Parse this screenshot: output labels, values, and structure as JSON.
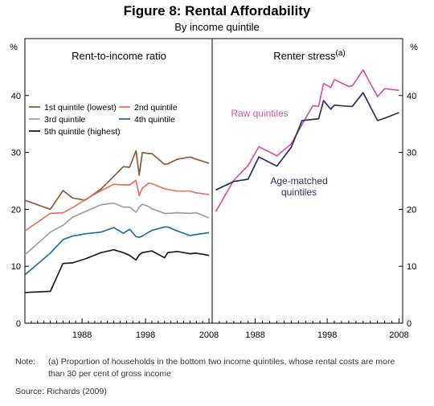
{
  "figure": {
    "title": "Figure 8: Rental Affordability",
    "subtitle": "By income quintile",
    "note_label": "Note:",
    "note_text": "(a) Proportion of households in the bottom two income quintiles, whose rental costs are more than 30 per cent of gross income",
    "source_label": "Source:",
    "source_text": "Richards (2009)"
  },
  "chart_data": [
    {
      "type": "line",
      "title": "Rent-to-income ratio",
      "title_superscript": "",
      "ylabel_left": "%",
      "ylabel_right": "",
      "ylim": [
        0,
        50
      ],
      "yticks": [
        0,
        10,
        20,
        30,
        40
      ],
      "xlim": [
        1979,
        2008.5
      ],
      "xticks": [
        1988,
        1998,
        2008
      ],
      "grid": false,
      "legend_position": "upper-left",
      "series": [
        {
          "name": "1st quintile (lowest)",
          "color": "#8b5a3c",
          "x": [
            1979,
            1983,
            1985,
            1986.5,
            1988.5,
            1991,
            1993,
            1994.5,
            1995.5,
            1996.5,
            1997,
            1997.5,
            1998.5,
            1999,
            2001,
            2001.5,
            2003,
            2005,
            2006,
            2008
          ],
          "y": [
            21.6,
            20,
            23.3,
            22,
            21.6,
            23.6,
            25.8,
            27.5,
            27.4,
            30.3,
            26,
            30,
            29.8,
            29.8,
            27.9,
            28,
            28.8,
            29.2,
            28.8,
            28.1
          ]
        },
        {
          "name": "2nd quintile",
          "color": "#e8715e",
          "x": [
            1979,
            1983,
            1985,
            1986.5,
            1988.5,
            1991,
            1993,
            1994.5,
            1995.5,
            1996.5,
            1997,
            1997.5,
            1998.5,
            1999,
            2001,
            2001.5,
            2003,
            2005,
            2006,
            2008
          ],
          "y": [
            16.2,
            19.3,
            19.4,
            20.3,
            21.7,
            23.3,
            24.4,
            24.3,
            24.3,
            25.1,
            22.4,
            23.7,
            24.6,
            24.5,
            23.6,
            23.5,
            23.2,
            23.2,
            22.9,
            22.6
          ]
        },
        {
          "name": "3rd quintile",
          "color": "#a0a0a0",
          "x": [
            1979,
            1983,
            1985,
            1986.5,
            1988.5,
            1991,
            1993,
            1994.5,
            1995.5,
            1996.5,
            1997,
            1997.5,
            1998.5,
            1999,
            2001,
            2001.5,
            2003,
            2005,
            2006,
            2008
          ],
          "y": [
            12,
            16,
            17.2,
            18.6,
            19.6,
            20.8,
            21.1,
            20.4,
            20.4,
            19.5,
            20.4,
            20.9,
            20.5,
            20.1,
            19.3,
            19.3,
            19.4,
            19.3,
            19.4,
            18.5
          ]
        },
        {
          "name": "4th quintile",
          "color": "#1f6fa6",
          "x": [
            1979,
            1983,
            1985,
            1986.5,
            1988.5,
            1991,
            1993,
            1994.5,
            1995.5,
            1996.5,
            1997,
            1997.5,
            1998.5,
            1999,
            2001,
            2001.5,
            2003,
            2005,
            2006,
            2008
          ],
          "y": [
            8.5,
            12.3,
            14.7,
            15.3,
            15.7,
            16,
            16.8,
            15.8,
            16.5,
            15.2,
            15.1,
            15.3,
            16,
            16.3,
            16.9,
            16.9,
            16.2,
            15.4,
            15.6,
            15.9
          ]
        },
        {
          "name": "5th quintile (highest)",
          "color": "#1a1a1a",
          "x": [
            1979,
            1983,
            1985,
            1986.5,
            1988.5,
            1991,
            1993,
            1994.5,
            1995.5,
            1996.5,
            1997,
            1997.5,
            1998.5,
            1999,
            2001,
            2001.5,
            2003,
            2005,
            2006,
            2008
          ],
          "y": [
            5.4,
            5.6,
            10.5,
            10.6,
            11.3,
            12.4,
            12.9,
            12.4,
            11.9,
            11.1,
            12,
            12.4,
            12.6,
            12.7,
            11.5,
            12.4,
            12.6,
            12.2,
            12.3,
            11.9
          ]
        }
      ]
    },
    {
      "type": "line",
      "title": "Renter stress",
      "title_superscript": "(a)",
      "ylabel_left": "",
      "ylabel_right": "%",
      "ylim": [
        0,
        50
      ],
      "yticks": [
        0,
        10,
        20,
        30,
        40
      ],
      "xlim": [
        1982,
        2008.5
      ],
      "xticks": [
        1988,
        1998,
        2008
      ],
      "grid": false,
      "annotations": [
        "Raw quintiles",
        "Age-matched quintiles"
      ],
      "series": [
        {
          "name": "Raw quintiles",
          "color": "#d9539b",
          "x": [
            1982.5,
            1985,
            1987,
            1988.5,
            1991,
            1993,
            1994.5,
            1996,
            1996.8,
            1997.5,
            1998.5,
            1999,
            2001,
            2001.5,
            2003,
            2005,
            2006,
            2008
          ],
          "y": [
            19.6,
            25.1,
            27.7,
            31,
            29.4,
            31.5,
            34.9,
            38.2,
            38.1,
            42.1,
            41.4,
            42.8,
            41.6,
            41.7,
            44.5,
            39.8,
            41.2,
            40.9
          ]
        },
        {
          "name": "Age-matched quintiles",
          "color": "#2d2d5e",
          "x": [
            1982.5,
            1985,
            1987,
            1988.5,
            1991,
            1993,
            1994.5,
            1996,
            1996.8,
            1997.5,
            1998.5,
            1999,
            2001,
            2001.5,
            2003,
            2005,
            2006,
            2008
          ],
          "y": [
            23.4,
            24.9,
            25.3,
            29.2,
            27.6,
            30.9,
            35.6,
            35.8,
            35.9,
            39.1,
            37.6,
            38.3,
            38.1,
            38.1,
            40.5,
            35.6,
            36,
            37
          ]
        }
      ]
    }
  ]
}
